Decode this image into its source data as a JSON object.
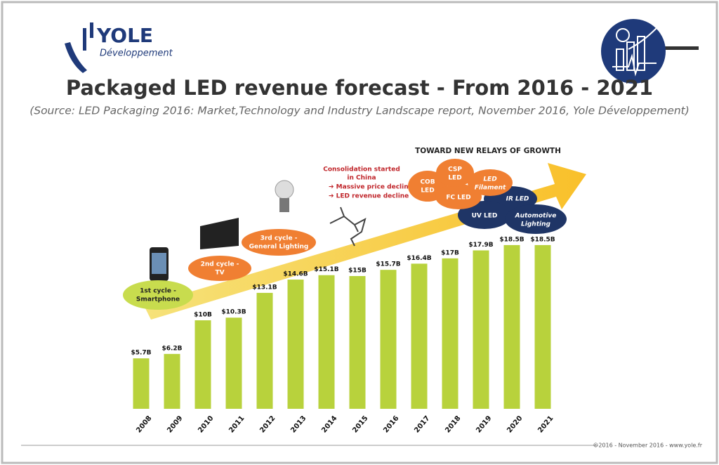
{
  "header": {
    "logo": "YOLE",
    "logo_sub": "Développement",
    "title": "Packaged LED revenue forecast - From 2016 - 2021",
    "subtitle": "(Source: LED Packaging 2016: Market,Technology and Industry Landscape report, November 2016, Yole Développement)"
  },
  "chart_data": {
    "type": "bar",
    "categories": [
      "2008",
      "2009",
      "2010",
      "2011",
      "2012",
      "2013",
      "2014",
      "2015",
      "2016",
      "2017",
      "2018",
      "2019",
      "2020",
      "2021"
    ],
    "values": [
      5.7,
      6.2,
      10,
      10.3,
      13.1,
      14.6,
      15.1,
      15,
      15.7,
      16.4,
      17,
      17.9,
      18.5,
      18.5
    ],
    "value_labels": [
      "$5.7B",
      "$6.2B",
      "$10B",
      "$10.3B",
      "$13.1B",
      "$14.6B",
      "$15.1B",
      "$15B",
      "$15.7B",
      "$16.4B",
      "$17B",
      "$17.9B",
      "$18.5B",
      "$18.5B"
    ],
    "color": "#b8d23c"
  },
  "annotations": {
    "cycle1": [
      "1st cycle -",
      "Smartphone"
    ],
    "cycle2": [
      "2nd cycle -",
      "TV"
    ],
    "cycle3": [
      "3rd cycle -",
      "General Lighting"
    ],
    "consolidation": [
      "Consolidation started",
      "in China",
      "➔ Massive price decline",
      "➔ LED revenue decline"
    ],
    "growth": "TOWARD NEW RELAYS OF GROWTH",
    "bubbles": [
      [
        "COB",
        "LED"
      ],
      [
        "CSP",
        "LED"
      ],
      [
        "LED",
        "Filament"
      ],
      [
        "FC LED"
      ],
      [
        "IR LED"
      ],
      [
        "UV LED"
      ],
      [
        "Automotive",
        "Lighting"
      ]
    ]
  },
  "footer": "©2016 - November 2016 - www.yole.fr"
}
